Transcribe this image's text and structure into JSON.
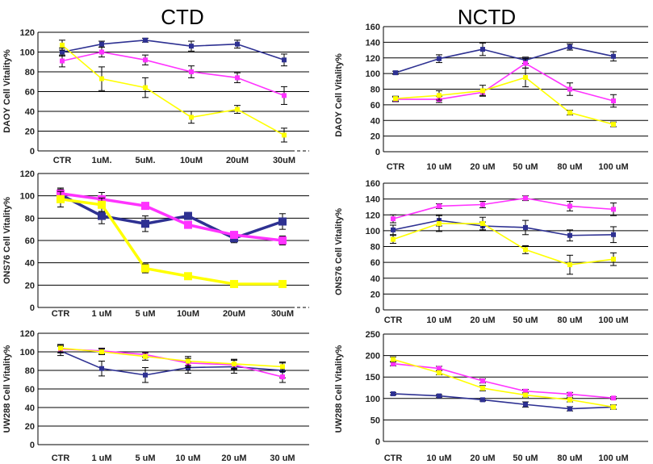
{
  "titles": {
    "left": "CTD",
    "right": "NCTD"
  },
  "colors": {
    "blue": "#2e3192",
    "magenta": "#ff33ff",
    "yellow": "#ffff00",
    "errorbar": "#000000"
  },
  "chart_data": [
    {
      "type": "line",
      "panel": "ctd-daoy",
      "ylabel": "DAOY Cell Vitality%",
      "categories": [
        "CTR",
        "1uM.",
        "5uM.",
        "10uM",
        "20uM",
        "30uM"
      ],
      "ylim": [
        0,
        120
      ],
      "yticks": [
        0,
        20,
        40,
        60,
        80,
        100,
        120
      ],
      "grid": true,
      "trailing_dash": true,
      "series": [
        {
          "color": "blue",
          "values": [
            100,
            108,
            112,
            106,
            108,
            92
          ],
          "errors": [
            4,
            3,
            2,
            5,
            4,
            6
          ]
        },
        {
          "color": "magenta",
          "values": [
            91,
            100,
            92,
            80,
            74,
            56
          ],
          "errors": [
            6,
            5,
            5,
            6,
            5,
            9
          ]
        },
        {
          "color": "yellow",
          "values": [
            107,
            73,
            64,
            34,
            42,
            16
          ],
          "errors": [
            5,
            12,
            10,
            6,
            4,
            7
          ]
        }
      ]
    },
    {
      "type": "line",
      "panel": "nctd-daoy",
      "ylabel": "DAOY Cell Vitality%",
      "categories": [
        "CTR",
        "10 uM",
        "20 uM",
        "50 uM",
        "80 uM",
        "100 uM"
      ],
      "ylim": [
        0,
        160
      ],
      "yticks": [
        0,
        20,
        40,
        60,
        80,
        100,
        120,
        140,
        160
      ],
      "grid": true,
      "trailing_dash": false,
      "series": [
        {
          "color": "blue",
          "values": [
            101,
            119,
            131,
            117,
            134,
            122
          ],
          "errors": [
            2,
            5,
            8,
            4,
            4,
            6
          ]
        },
        {
          "color": "magenta",
          "values": [
            67,
            67,
            76,
            113,
            80,
            65
          ],
          "errors": [
            3,
            4,
            4,
            6,
            8,
            8
          ]
        },
        {
          "color": "yellow",
          "values": [
            68,
            72,
            78,
            95,
            50,
            35
          ],
          "errors": [
            3,
            6,
            7,
            12,
            3,
            3
          ]
        }
      ]
    },
    {
      "type": "line",
      "panel": "ctd-ons76",
      "ylabel": "ONS76  Cell Vitality%",
      "categories": [
        "CTR",
        "1 uM",
        "5 uM",
        "10uM",
        "20uM",
        "30uM"
      ],
      "ylim": [
        0,
        120
      ],
      "yticks": [
        0,
        20,
        40,
        60,
        80,
        100,
        120
      ],
      "grid": true,
      "trailing_dash": true,
      "thick": true,
      "series": [
        {
          "color": "blue",
          "values": [
            101,
            82,
            75,
            82,
            62,
            77
          ],
          "errors": [
            6,
            7,
            7,
            3,
            4,
            7
          ]
        },
        {
          "color": "magenta",
          "values": [
            102,
            97,
            91,
            74,
            65,
            60
          ],
          "errors": [
            4,
            6,
            3,
            3,
            3,
            4
          ]
        },
        {
          "color": "yellow",
          "values": [
            97,
            92,
            35,
            28,
            21,
            21
          ],
          "errors": [
            7,
            6,
            4,
            3,
            2,
            2
          ]
        }
      ]
    },
    {
      "type": "line",
      "panel": "nctd-ons76",
      "ylabel": "ONS76 Cell Vitality%",
      "categories": [
        "CTR",
        "10 uM",
        "20 uM",
        "50 uM",
        "80 uM",
        "100 uM"
      ],
      "ylim": [
        0,
        160
      ],
      "yticks": [
        0,
        20,
        40,
        60,
        80,
        100,
        120,
        140,
        160
      ],
      "grid": true,
      "trailing_dash": false,
      "series": [
        {
          "color": "blue",
          "values": [
            101,
            113,
            106,
            104,
            94,
            95
          ],
          "errors": [
            6,
            7,
            5,
            9,
            7,
            10
          ]
        },
        {
          "color": "magenta",
          "values": [
            115,
            131,
            133,
            141,
            131,
            127
          ],
          "errors": [
            5,
            3,
            4,
            3,
            6,
            8
          ]
        },
        {
          "color": "yellow",
          "values": [
            89,
            109,
            109,
            76,
            57,
            64
          ],
          "errors": [
            5,
            10,
            8,
            5,
            12,
            8
          ]
        }
      ]
    },
    {
      "type": "line",
      "panel": "ctd-uw288",
      "ylabel": "UW288 Cell Vitality%",
      "categories": [
        "CTR",
        "1 uM",
        "5 uM",
        "10 uM",
        "20 uM",
        "30 uM"
      ],
      "ylim": [
        0,
        120
      ],
      "yticks": [
        0,
        20,
        40,
        60,
        80,
        100,
        120
      ],
      "grid": true,
      "trailing_dash": false,
      "series": [
        {
          "color": "blue",
          "values": [
            101,
            82,
            75,
            83,
            84,
            80
          ],
          "errors": [
            5,
            8,
            8,
            6,
            7,
            8
          ]
        },
        {
          "color": "magenta",
          "values": [
            103,
            101,
            97,
            88,
            86,
            73
          ],
          "errors": [
            4,
            3,
            3,
            5,
            5,
            6
          ]
        },
        {
          "color": "yellow",
          "values": [
            104,
            100,
            95,
            90,
            87,
            84
          ],
          "errors": [
            4,
            3,
            4,
            5,
            5,
            5
          ]
        }
      ]
    },
    {
      "type": "line",
      "panel": "nctd-uw288",
      "ylabel": "UW288 Cell Vitality%",
      "categories": [
        "CTR",
        "10 uM",
        "20 uM",
        "50 uM",
        "80 uM",
        "100 uM"
      ],
      "ylim": [
        0,
        250
      ],
      "yticks": [
        0,
        50,
        100,
        150,
        200,
        250
      ],
      "grid": true,
      "trailing_dash": false,
      "series": [
        {
          "color": "blue",
          "values": [
            111,
            106,
            97,
            86,
            76,
            80
          ],
          "errors": [
            3,
            3,
            3,
            6,
            5,
            5
          ]
        },
        {
          "color": "magenta",
          "values": [
            181,
            170,
            141,
            117,
            110,
            101
          ],
          "errors": [
            5,
            5,
            5,
            4,
            4,
            3
          ]
        },
        {
          "color": "yellow",
          "values": [
            191,
            160,
            124,
            108,
            97,
            80
          ],
          "errors": [
            6,
            5,
            6,
            5,
            5,
            5
          ]
        }
      ]
    }
  ]
}
